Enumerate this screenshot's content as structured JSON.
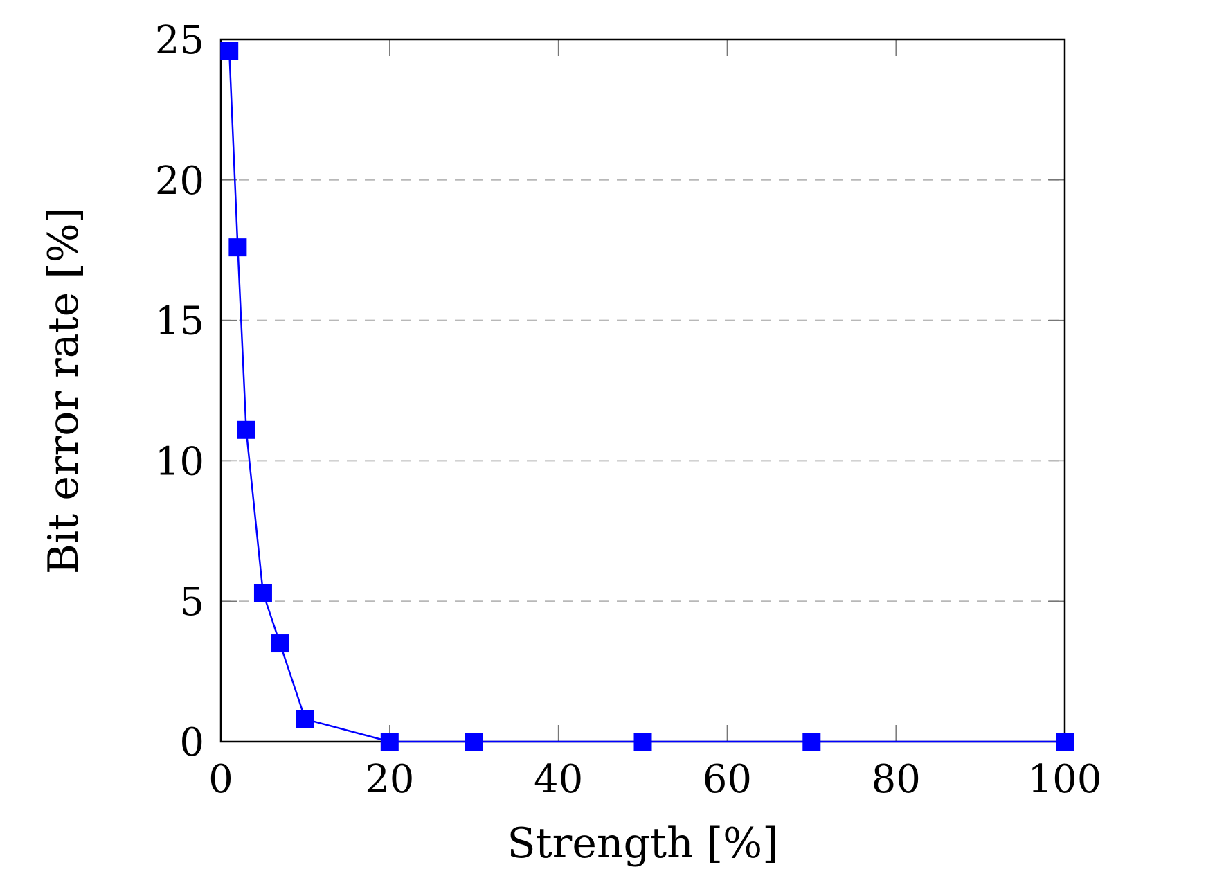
{
  "chart_data": {
    "type": "line",
    "title": "",
    "xlabel": "Strength [%]",
    "ylabel": "Bit error rate [%]",
    "xlim": [
      0,
      100
    ],
    "ylim": [
      0,
      25
    ],
    "xticks": [
      0,
      20,
      40,
      60,
      80,
      100
    ],
    "yticks": [
      0,
      5,
      10,
      15,
      20,
      25
    ],
    "grid": "horizontal-dashed",
    "legend": "none",
    "series": [
      {
        "color": "#0000ff",
        "marker": "square",
        "x": [
          1,
          2,
          3,
          5,
          7,
          10,
          20,
          30,
          50,
          70,
          100
        ],
        "y": [
          24.6,
          17.6,
          11.1,
          5.3,
          3.5,
          0.8,
          0,
          0,
          0,
          0,
          0
        ]
      }
    ]
  }
}
